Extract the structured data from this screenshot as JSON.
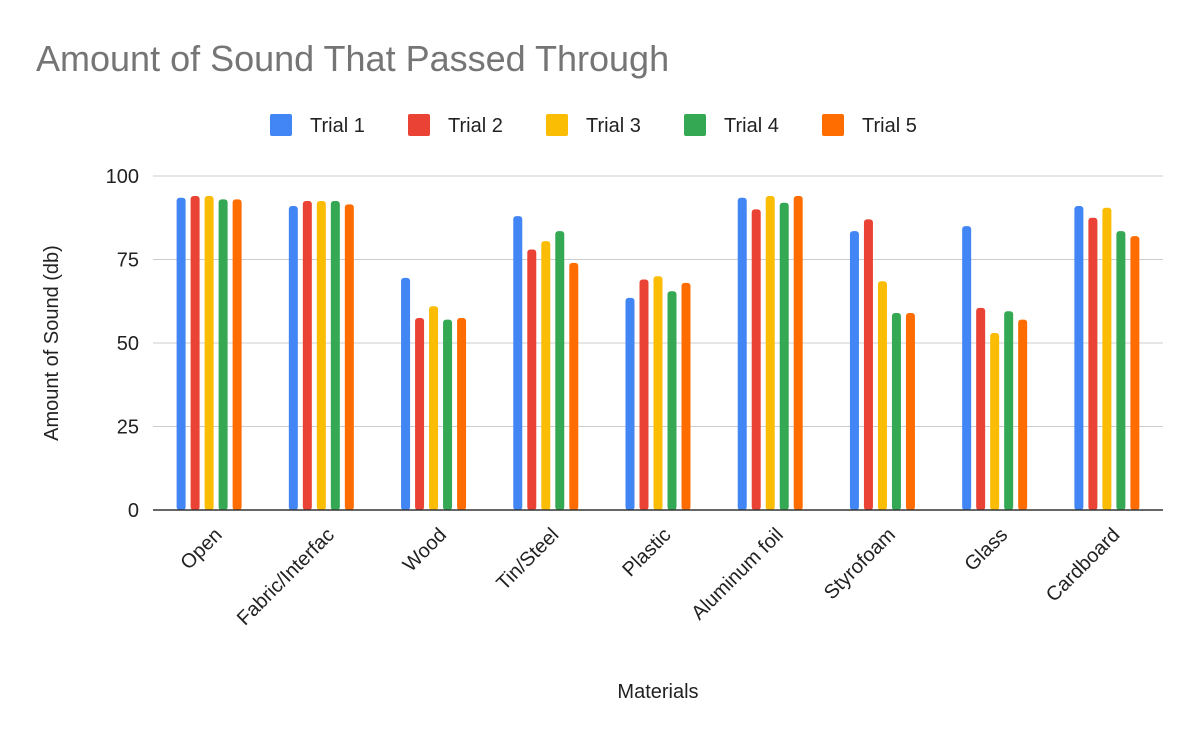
{
  "chart_data": {
    "type": "bar",
    "title": "Amount of Sound That Passed Through",
    "xlabel": "Materials",
    "ylabel": "Amount of Sound (db)",
    "ylim": [
      0,
      100
    ],
    "yticks": [
      0,
      25,
      50,
      75,
      100
    ],
    "grid": true,
    "legend_position": "top",
    "categories": [
      "Open",
      "Fabric/Interfac",
      "Wood",
      "Tin/Steel",
      "Plastic",
      "Aluminum foil",
      "Styrofoam",
      "Glass",
      "Cardboard"
    ],
    "series": [
      {
        "name": "Trial 1",
        "color": "#4285F4",
        "values": [
          93.5,
          91,
          69.5,
          88,
          63.5,
          93.5,
          83.5,
          85,
          91
        ]
      },
      {
        "name": "Trial 2",
        "color": "#EA4335",
        "values": [
          94,
          92.5,
          57.5,
          78,
          69,
          90,
          87,
          60.5,
          87.5
        ]
      },
      {
        "name": "Trial 3",
        "color": "#FBBC04",
        "values": [
          94,
          92.5,
          61,
          80.5,
          70,
          94,
          68.5,
          53,
          90.5
        ]
      },
      {
        "name": "Trial 4",
        "color": "#34A853",
        "values": [
          93,
          92.5,
          57,
          83.5,
          65.5,
          92,
          59,
          59.5,
          83.5
        ]
      },
      {
        "name": "Trial 5",
        "color": "#FF6D01",
        "values": [
          93,
          91.5,
          57.5,
          74,
          68,
          94,
          59,
          57,
          82
        ]
      }
    ]
  }
}
